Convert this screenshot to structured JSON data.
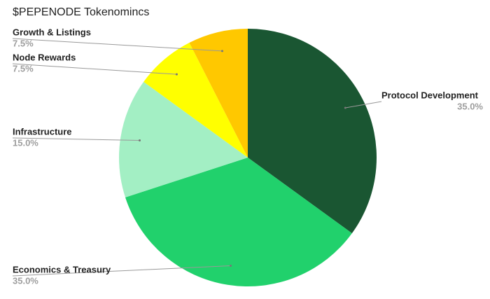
{
  "chart_data": {
    "type": "pie",
    "title": "$PEPENODE Tokenomincs",
    "categories": [
      "Protocol Development",
      "Economics & Treasury",
      "Infrastructure",
      "Node Rewards",
      "Growth & Listings"
    ],
    "values": [
      35,
      35,
      15,
      7.5,
      7.5
    ],
    "value_labels": [
      "35.0%",
      "35.0%",
      "15.0%",
      "7.5%",
      "7.5%"
    ],
    "colors": [
      "#1a5632",
      "#21d16c",
      "#a3efc4",
      "#ffff00",
      "#ffc800"
    ]
  }
}
